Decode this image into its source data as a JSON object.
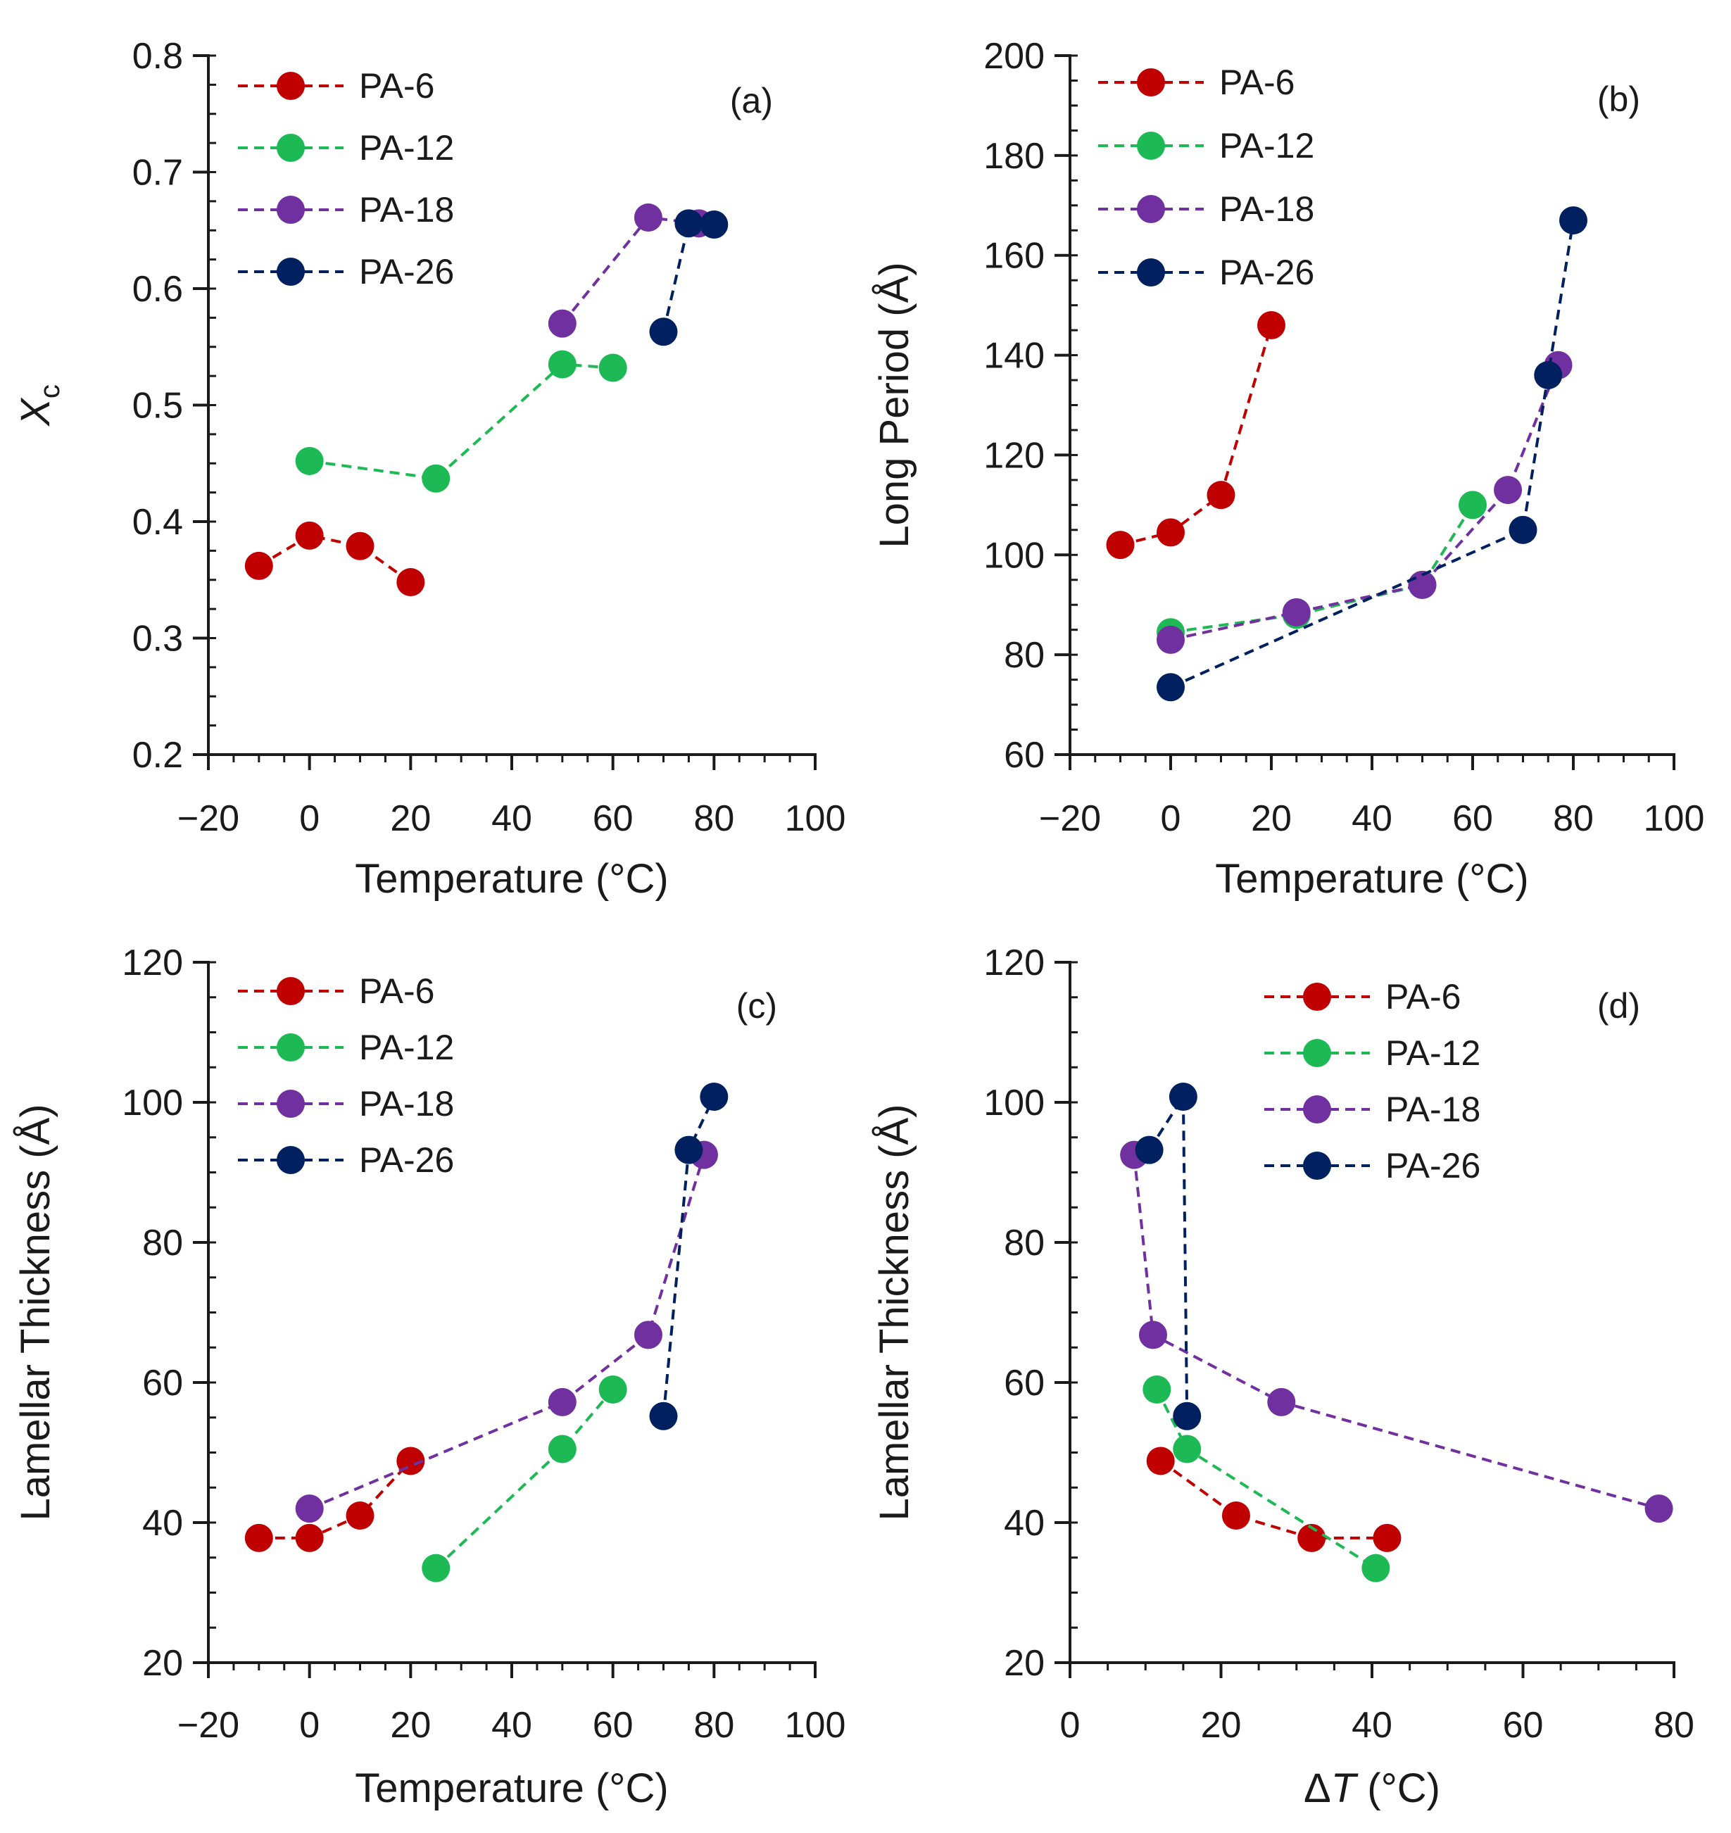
{
  "colors": {
    "PA-6": "#c00000",
    "PA-12": "#1db954",
    "PA-18": "#7030a0",
    "PA-26": "#002060"
  },
  "chart_data": [
    {
      "id": "a",
      "type": "line",
      "panel_label": "(a)",
      "title": "",
      "xlabel": "Temperature (°C)",
      "ylabel_main": "X",
      "ylabel_sub": "c",
      "xlim": [
        -20,
        100
      ],
      "ylim": [
        0.2,
        0.8
      ],
      "xticks": [
        -20,
        0,
        20,
        40,
        60,
        80,
        100
      ],
      "xtick_labels": [
        "−20",
        "0",
        "20",
        "40",
        "60",
        "80",
        "100"
      ],
      "yticks": [
        0.2,
        0.3,
        0.4,
        0.5,
        0.6,
        0.7,
        0.8
      ],
      "ytick_labels": [
        "0.2",
        "0.3",
        "0.4",
        "0.5",
        "0.6",
        "0.7",
        "0.8"
      ],
      "xminor": 5,
      "yminor": 0.025,
      "legend_position": "top-left",
      "series": [
        {
          "name": "PA-6",
          "x": [
            -10,
            0,
            10,
            20
          ],
          "y": [
            0.362,
            0.388,
            0.379,
            0.348
          ]
        },
        {
          "name": "PA-12",
          "x": [
            0,
            25,
            50,
            60
          ],
          "y": [
            0.452,
            0.437,
            0.535,
            0.532
          ]
        },
        {
          "name": "PA-18",
          "x": [
            50,
            67,
            77
          ],
          "y": [
            0.57,
            0.661,
            0.656
          ]
        },
        {
          "name": "PA-26",
          "x": [
            70,
            75,
            80
          ],
          "y": [
            0.563,
            0.656,
            0.655
          ]
        }
      ]
    },
    {
      "id": "b",
      "type": "line",
      "panel_label": "(b)",
      "title": "",
      "xlabel": "Temperature (°C)",
      "ylabel_main": "Long Period (Å)",
      "ylabel_sub": "",
      "xlim": [
        -20,
        100
      ],
      "ylim": [
        60,
        200
      ],
      "xticks": [
        -20,
        0,
        20,
        40,
        60,
        80,
        100
      ],
      "xtick_labels": [
        "−20",
        "0",
        "20",
        "40",
        "60",
        "80",
        "100"
      ],
      "yticks": [
        60,
        80,
        100,
        120,
        140,
        160,
        180,
        200
      ],
      "ytick_labels": [
        "60",
        "80",
        "100",
        "120",
        "140",
        "160",
        "180",
        "200"
      ],
      "xminor": 5,
      "yminor": 5,
      "legend_position": "top-left",
      "series": [
        {
          "name": "PA-6",
          "x": [
            -10,
            0,
            10,
            20
          ],
          "y": [
            102,
            104.5,
            112,
            146
          ]
        },
        {
          "name": "PA-12",
          "x": [
            0,
            25,
            50,
            60
          ],
          "y": [
            84.5,
            88,
            94,
            110
          ]
        },
        {
          "name": "PA-18",
          "x": [
            0,
            25,
            50,
            67,
            77
          ],
          "y": [
            83,
            88.5,
            94,
            113,
            138
          ]
        },
        {
          "name": "PA-26",
          "x": [
            0,
            70,
            75,
            80
          ],
          "y": [
            73.5,
            105,
            136,
            167
          ]
        }
      ]
    },
    {
      "id": "c",
      "type": "line",
      "panel_label": "(c)",
      "title": "",
      "xlabel": "Temperature (°C)",
      "ylabel_main": "Lamellar Thickness (Å)",
      "ylabel_sub": "",
      "xlim": [
        -20,
        100
      ],
      "ylim": [
        20,
        120
      ],
      "xticks": [
        -20,
        0,
        20,
        40,
        60,
        80,
        100
      ],
      "xtick_labels": [
        "−20",
        "0",
        "20",
        "40",
        "60",
        "80",
        "100"
      ],
      "yticks": [
        20,
        40,
        60,
        80,
        100,
        120
      ],
      "ytick_labels": [
        "20",
        "40",
        "60",
        "80",
        "100",
        "120"
      ],
      "xminor": 5,
      "yminor": 5,
      "legend_position": "top-left",
      "series": [
        {
          "name": "PA-6",
          "x": [
            -10,
            0,
            10,
            20
          ],
          "y": [
            37.8,
            37.8,
            41,
            48.8
          ]
        },
        {
          "name": "PA-12",
          "x": [
            25,
            50,
            60
          ],
          "y": [
            33.5,
            50.5,
            59
          ]
        },
        {
          "name": "PA-18",
          "x": [
            0,
            50,
            67,
            78
          ],
          "y": [
            42,
            57.2,
            66.8,
            92.5
          ]
        },
        {
          "name": "PA-26",
          "x": [
            70,
            75,
            80
          ],
          "y": [
            55.2,
            93.2,
            100.8
          ]
        }
      ]
    },
    {
      "id": "d",
      "type": "line",
      "panel_label": "(d)",
      "title": "",
      "xlabel": "ΔT (°C)",
      "xlabel_prefix": "Δ",
      "xlabel_var": "T",
      "xlabel_unit": " (°C)",
      "ylabel_main": "Lamellar Thickness (Å)",
      "ylabel_sub": "",
      "xlim": [
        0,
        80
      ],
      "ylim": [
        20,
        120
      ],
      "xticks": [
        0,
        20,
        40,
        60,
        80
      ],
      "xtick_labels": [
        "0",
        "20",
        "40",
        "60",
        "80"
      ],
      "yticks": [
        20,
        40,
        60,
        80,
        100,
        120
      ],
      "ytick_labels": [
        "20",
        "40",
        "60",
        "80",
        "100",
        "120"
      ],
      "xminor": 5,
      "yminor": 5,
      "legend_position": "top-center",
      "series": [
        {
          "name": "PA-6",
          "x": [
            12,
            22,
            32,
            42
          ],
          "y": [
            48.8,
            41,
            37.8,
            37.8
          ]
        },
        {
          "name": "PA-12",
          "x": [
            11.5,
            15.5,
            40.5
          ],
          "y": [
            59,
            50.5,
            33.5
          ]
        },
        {
          "name": "PA-18",
          "x": [
            8.5,
            11,
            28,
            78
          ],
          "y": [
            92.5,
            66.8,
            57.2,
            42
          ]
        },
        {
          "name": "PA-26",
          "x": [
            10.5,
            15,
            15.5
          ],
          "y": [
            93.2,
            100.8,
            55.2
          ]
        }
      ]
    }
  ]
}
